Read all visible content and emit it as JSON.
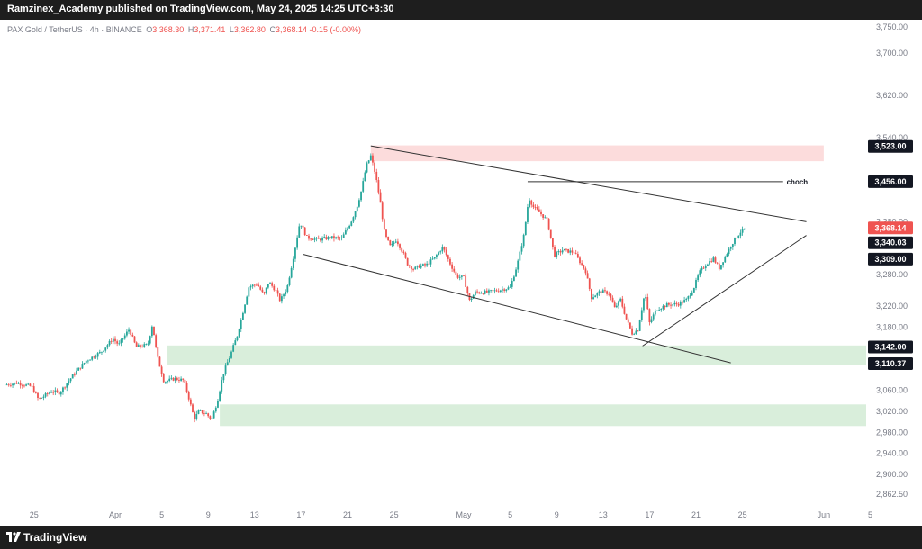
{
  "header": {
    "published_by": "Ramzinex_Academy published on TradingView.com, May 24, 2025 14:25 UTC+3:30"
  },
  "symbol": {
    "name": "PAX Gold / TetherUS · 4h · BINANCE",
    "open_label": "O",
    "open": "3,368.30",
    "high_label": "H",
    "high": "3,371.41",
    "low_label": "L",
    "low": "3,362.80",
    "close_label": "C",
    "close": "3,368.14",
    "change": "-0.15 (-0.00%)"
  },
  "footer": {
    "brand": "TradingView"
  },
  "colors": {
    "up": "#26a69a",
    "down": "#ef5350",
    "supply_zone": "#fcdcdc",
    "demand_zone": "#d9eedb",
    "line": "#333333",
    "tag_dark": "#131722",
    "tag_price": "#ef5350"
  },
  "chart_data": {
    "type": "candlestick",
    "symbol": "PAXGUSDT",
    "timeframe": "4h",
    "y_axis": {
      "ylim": [
        2840,
        3770
      ],
      "ticks": [
        "3,750.00",
        "3,700.00",
        "3,620.00",
        "3,540.00",
        "3,380.00",
        "3,280.00",
        "3,220.00",
        "3,180.00",
        "3,060.00",
        "3,020.00",
        "2,980.00",
        "2,940.00",
        "2,900.00",
        "2,862.50"
      ]
    },
    "x_axis": {
      "ticks": [
        {
          "label": "25",
          "day": -7
        },
        {
          "label": "Apr",
          "day": 0
        },
        {
          "label": "5",
          "day": 4
        },
        {
          "label": "9",
          "day": 8
        },
        {
          "label": "13",
          "day": 12
        },
        {
          "label": "17",
          "day": 16
        },
        {
          "label": "21",
          "day": 20
        },
        {
          "label": "25",
          "day": 24
        },
        {
          "label": "May",
          "day": 30
        },
        {
          "label": "5",
          "day": 34
        },
        {
          "label": "9",
          "day": 38
        },
        {
          "label": "13",
          "day": 42
        },
        {
          "label": "17",
          "day": 46
        },
        {
          "label": "21",
          "day": 50
        },
        {
          "label": "25",
          "day": 54
        },
        {
          "label": "Jun",
          "day": 61
        },
        {
          "label": "5",
          "day": 65
        }
      ]
    },
    "price_tags": [
      {
        "label": "3,523.00",
        "value": 3523,
        "style": "dark"
      },
      {
        "label": "3,456.00",
        "value": 3456,
        "style": "dark"
      },
      {
        "label": "3,368.14",
        "value": 3368.14,
        "style": "price"
      },
      {
        "label": "3,340.03",
        "value": 3340.03,
        "style": "dark"
      },
      {
        "label": "3,309.00",
        "value": 3309,
        "style": "dark"
      },
      {
        "label": "3,142.00",
        "value": 3142,
        "style": "dark"
      },
      {
        "label": "3,110.37",
        "value": 3110.37,
        "style": "dark"
      }
    ],
    "zones": [
      {
        "type": "supply",
        "from_day": 22,
        "to_day": 61,
        "y_top": 3525,
        "y_bottom": 3495
      },
      {
        "type": "demand",
        "from_day": 4.5,
        "to_day": 68,
        "y_top": 3145,
        "y_bottom": 3108
      },
      {
        "type": "demand",
        "from_day": 9,
        "to_day": 68,
        "y_top": 3033,
        "y_bottom": 2992
      }
    ],
    "trendlines": [
      {
        "from": [
          22,
          3524
        ],
        "to": [
          59.5,
          3380
        ]
      },
      {
        "from": [
          16.2,
          3318
        ],
        "to": [
          53,
          3112
        ]
      },
      {
        "from": [
          45.4,
          3144
        ],
        "to": [
          59.5,
          3354
        ]
      },
      {
        "from": [
          35.5,
          3456
        ],
        "to": [
          57.5,
          3456
        ]
      }
    ],
    "annotations": [
      {
        "text": "choch",
        "day": 57.8,
        "value": 3456
      }
    ],
    "price_path": [
      [
        -9.5,
        3070
      ],
      [
        -8.5,
        3074
      ],
      [
        -7.2,
        3067
      ],
      [
        -6.6,
        3042
      ],
      [
        -5.5,
        3058
      ],
      [
        -4.8,
        3055
      ],
      [
        -3.5,
        3092
      ],
      [
        -2.5,
        3116
      ],
      [
        -1.2,
        3133
      ],
      [
        -0.2,
        3158
      ],
      [
        0.3,
        3146
      ],
      [
        1.2,
        3176
      ],
      [
        1.8,
        3142
      ],
      [
        2.8,
        3146
      ],
      [
        3.2,
        3186
      ],
      [
        3.6,
        3126
      ],
      [
        4.2,
        3076
      ],
      [
        5.1,
        3082
      ],
      [
        5.9,
        3079
      ],
      [
        6.3,
        3048
      ],
      [
        6.8,
        3006
      ],
      [
        7.2,
        3020
      ],
      [
        7.8,
        3016
      ],
      [
        8.3,
        3004
      ],
      [
        8.8,
        3040
      ],
      [
        9.3,
        3092
      ],
      [
        9.9,
        3126
      ],
      [
        10.5,
        3164
      ],
      [
        10.9,
        3200
      ],
      [
        11.5,
        3256
      ],
      [
        12.2,
        3262
      ],
      [
        12.8,
        3240
      ],
      [
        13.2,
        3266
      ],
      [
        13.8,
        3250
      ],
      [
        14.2,
        3230
      ],
      [
        14.8,
        3255
      ],
      [
        15.4,
        3320
      ],
      [
        15.9,
        3380
      ],
      [
        16.5,
        3350
      ],
      [
        17.5,
        3346
      ],
      [
        18.5,
        3350
      ],
      [
        19.5,
        3348
      ],
      [
        20.3,
        3380
      ],
      [
        20.8,
        3408
      ],
      [
        21.2,
        3440
      ],
      [
        21.6,
        3485
      ],
      [
        22.0,
        3505
      ],
      [
        22.4,
        3470
      ],
      [
        22.8,
        3420
      ],
      [
        23.2,
        3356
      ],
      [
        23.7,
        3332
      ],
      [
        24.2,
        3346
      ],
      [
        24.8,
        3320
      ],
      [
        25.2,
        3298
      ],
      [
        25.7,
        3290
      ],
      [
        26.2,
        3296
      ],
      [
        26.8,
        3298
      ],
      [
        27.5,
        3312
      ],
      [
        28.2,
        3332
      ],
      [
        28.8,
        3302
      ],
      [
        29.4,
        3276
      ],
      [
        30.0,
        3274
      ],
      [
        30.5,
        3230
      ],
      [
        31.0,
        3246
      ],
      [
        32.0,
        3246
      ],
      [
        33.0,
        3250
      ],
      [
        34.0,
        3255
      ],
      [
        34.6,
        3298
      ],
      [
        35.2,
        3356
      ],
      [
        35.6,
        3426
      ],
      [
        36.0,
        3408
      ],
      [
        36.6,
        3396
      ],
      [
        37.2,
        3382
      ],
      [
        37.8,
        3316
      ],
      [
        38.5,
        3326
      ],
      [
        39.5,
        3322
      ],
      [
        40.5,
        3286
      ],
      [
        41.0,
        3236
      ],
      [
        41.8,
        3248
      ],
      [
        42.5,
        3244
      ],
      [
        43.0,
        3216
      ],
      [
        43.5,
        3232
      ],
      [
        44.0,
        3195
      ],
      [
        44.5,
        3168
      ],
      [
        45.0,
        3175
      ],
      [
        45.6,
        3246
      ],
      [
        46.0,
        3188
      ],
      [
        46.6,
        3214
      ],
      [
        47.5,
        3222
      ],
      [
        48.5,
        3224
      ],
      [
        49.2,
        3232
      ],
      [
        49.8,
        3254
      ],
      [
        50.3,
        3284
      ],
      [
        50.9,
        3300
      ],
      [
        51.5,
        3310
      ],
      [
        52.0,
        3292
      ],
      [
        52.6,
        3318
      ],
      [
        53.2,
        3342
      ],
      [
        53.8,
        3360
      ],
      [
        54.3,
        3368
      ]
    ]
  }
}
